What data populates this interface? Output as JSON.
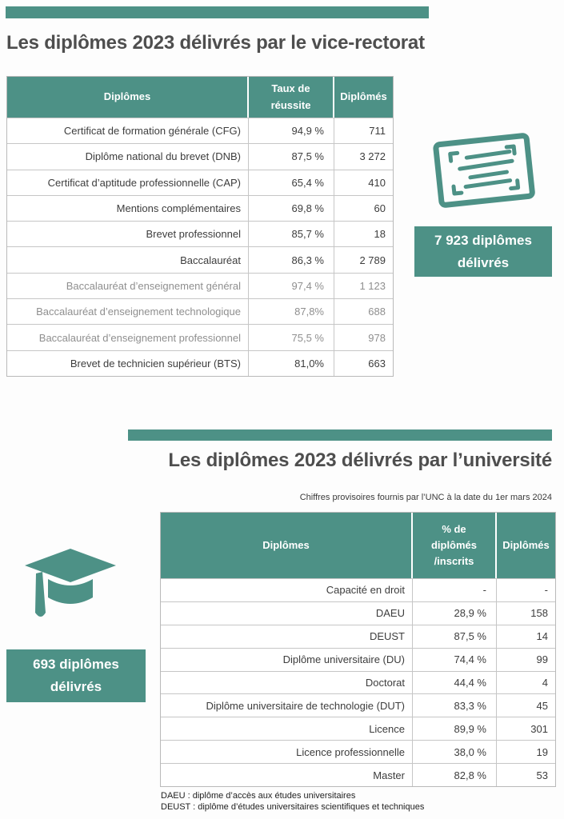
{
  "page": {
    "accent_color": "#4d9186",
    "title_color": "#4e4e4e"
  },
  "section_vice_rectorat": {
    "title": "Les diplômes 2023 délivrés par le vice-rectorat",
    "table": {
      "headers": [
        "Diplômes",
        "Taux de\nréussite",
        "Diplômés"
      ],
      "rows": [
        {
          "label": "Certificat de formation générale (CFG)",
          "rate": "94,9 %",
          "count": "711",
          "muted": false
        },
        {
          "label": "Diplôme national du brevet (DNB)",
          "rate": "87,5 %",
          "count": "3 272",
          "muted": false
        },
        {
          "label": "Certificat d’aptitude professionnelle (CAP)",
          "rate": "65,4 %",
          "count": "410",
          "muted": false
        },
        {
          "label": "Mentions complémentaires",
          "rate": "69,8 %",
          "count": "60",
          "muted": false
        },
        {
          "label": "Brevet professionnel",
          "rate": "85,7 %",
          "count": "18",
          "muted": false
        },
        {
          "label": "Baccalauréat",
          "rate": "86,3 %",
          "count": "2 789",
          "muted": false
        },
        {
          "label": "Baccalauréat d’enseignement général",
          "rate": "97,4 %",
          "count": "1 123",
          "muted": true
        },
        {
          "label": "Baccalauréat d’enseignement technologique",
          "rate": "87,8%",
          "count": "688",
          "muted": true
        },
        {
          "label": "Baccalauréat d’enseignement professionnel",
          "rate": "75,5 %",
          "count": "978",
          "muted": true
        },
        {
          "label": "Brevet de technicien supérieur (BTS)",
          "rate": "81,0%",
          "count": "663",
          "muted": false
        }
      ]
    },
    "badge": {
      "line1": "7 923 diplômes",
      "line2": "délivrés"
    },
    "icon": "certificate-icon"
  },
  "section_universite": {
    "title": "Les diplômes 2023 délivrés par l’université",
    "note": "Chiffres provisoires fournis par l’UNC à la date du 1er mars 2024",
    "table": {
      "headers": [
        "Diplômes",
        "% de\ndiplômés\n/inscrits",
        "Diplômés"
      ],
      "rows": [
        {
          "label": "Capacité en droit",
          "rate": "-",
          "count": "-",
          "muted": false
        },
        {
          "label": "DAEU",
          "rate": "28,9 %",
          "count": "158",
          "muted": false
        },
        {
          "label": "DEUST",
          "rate": "87,5 %",
          "count": "14",
          "muted": false
        },
        {
          "label": "Diplôme universitaire (DU)",
          "rate": "74,4 %",
          "count": "99",
          "muted": false
        },
        {
          "label": "Doctorat",
          "rate": "44,4 %",
          "count": "4",
          "muted": false
        },
        {
          "label": "Diplôme universitaire de technologie (DUT)",
          "rate": "83,3 %",
          "count": "45",
          "muted": false
        },
        {
          "label": "Licence",
          "rate": "89,9 %",
          "count": "301",
          "muted": false
        },
        {
          "label": "Licence professionnelle",
          "rate": "38,0 %",
          "count": "19",
          "muted": false
        },
        {
          "label": "Master",
          "rate": "82,8 %",
          "count": "53",
          "muted": false
        }
      ]
    },
    "badge": {
      "line1": "693 diplômes",
      "line2": "délivrés"
    },
    "icon": "graduation-cap-icon",
    "footnotes": [
      "DAEU : diplôme d’accès aux études universitaires",
      "DEUST : diplôme d’études universitaires scientifiques et techniques"
    ]
  }
}
